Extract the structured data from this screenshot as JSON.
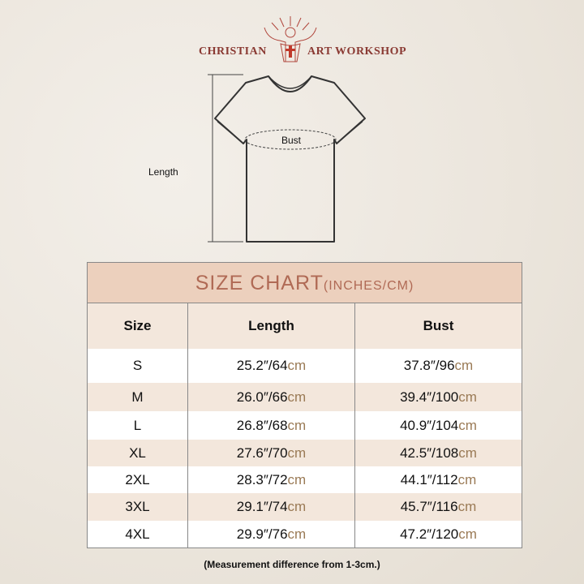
{
  "brand": {
    "left": "CHRISTIAN",
    "right": "ART WORKSHOP"
  },
  "diagram": {
    "length_label": "Length",
    "bust_label": "Bust"
  },
  "table": {
    "title": "SIZE CHART",
    "title_units": "(INCHES/CM)",
    "headers": [
      "Size",
      "Length",
      "Bust"
    ],
    "rows": [
      {
        "size": "S",
        "length_in": "25.2″/64",
        "length_cm": "cm",
        "bust_in": "37.8″/96",
        "bust_cm": "cm"
      },
      {
        "size": "M",
        "length_in": "26.0″/66",
        "length_cm": "cm",
        "bust_in": "39.4″/100",
        "bust_cm": "cm"
      },
      {
        "size": "L",
        "length_in": "26.8″/68",
        "length_cm": "cm",
        "bust_in": "40.9″/104",
        "bust_cm": "cm"
      },
      {
        "size": "XL",
        "length_in": "27.6″/70",
        "length_cm": "cm",
        "bust_in": "42.5″/108",
        "bust_cm": "cm"
      },
      {
        "size": "2XL",
        "length_in": "28.3″/72",
        "length_cm": "cm",
        "bust_in": "44.1″/112",
        "bust_cm": "cm"
      },
      {
        "size": "3XL",
        "length_in": "29.1″/74",
        "length_cm": "cm",
        "bust_in": "45.7″/116",
        "bust_cm": "cm"
      },
      {
        "size": "4XL",
        "length_in": "29.9″/76",
        "length_cm": "cm",
        "bust_in": "47.2″/120",
        "bust_cm": "cm"
      }
    ]
  },
  "note": "(Measurement difference from 1-3cm.)",
  "colors": {
    "title_bg": "#ecd0bd",
    "title_text": "#b06a55",
    "alt_row": "#f3e7dc",
    "cm_text": "#9a7a55",
    "brand": "#8a3a33"
  }
}
